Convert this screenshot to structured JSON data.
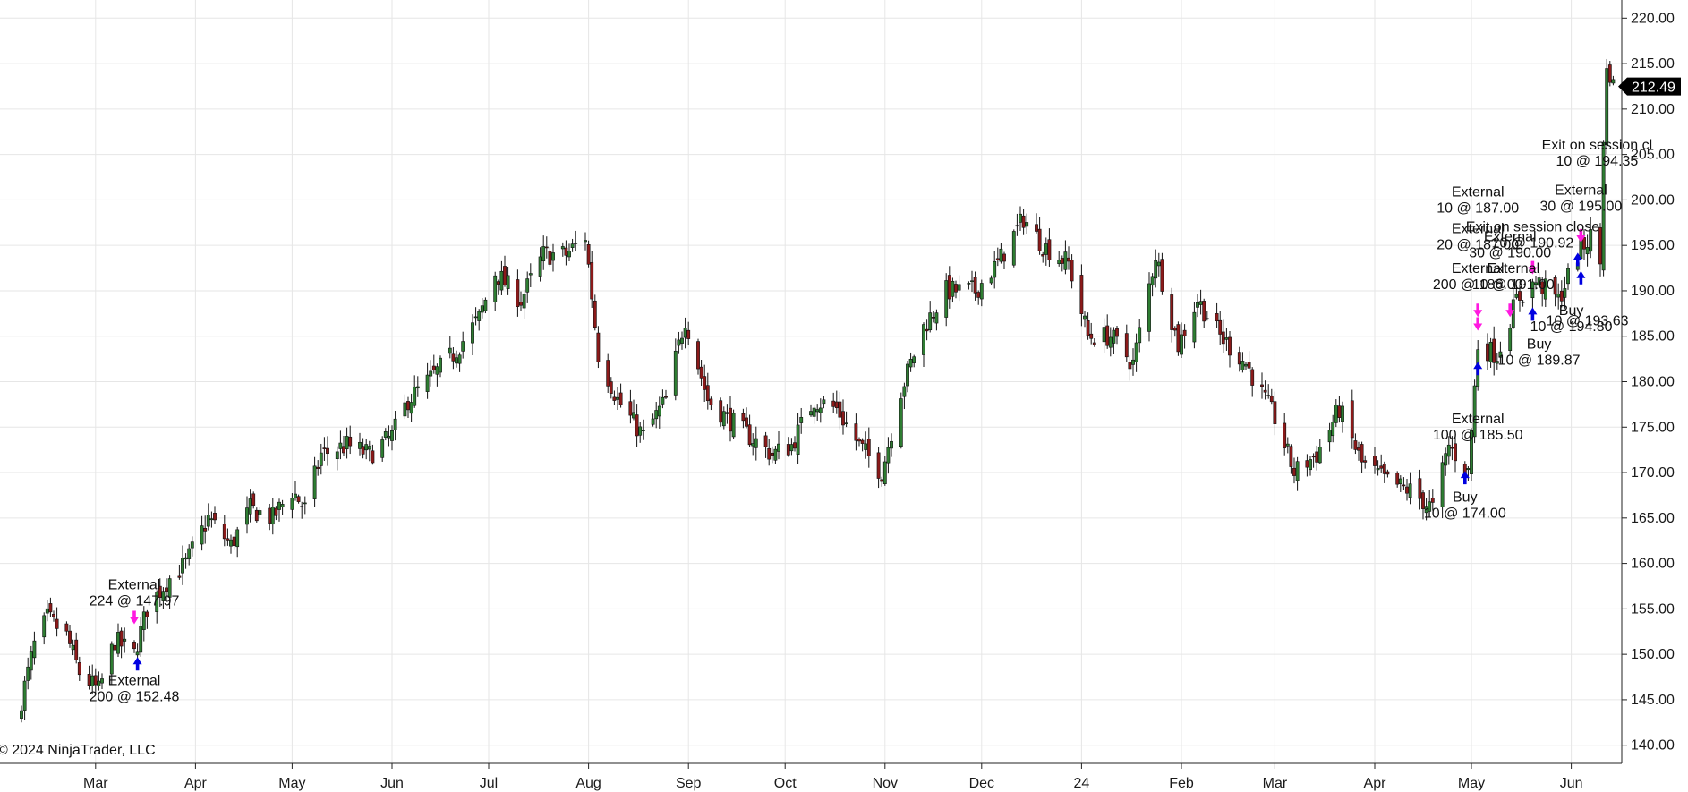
{
  "copyright": "© 2024 NinjaTrader, LLC",
  "colors": {
    "background": "#ffffff",
    "grid": "#e6e6e6",
    "up_candle": "#2e7d32",
    "down_candle": "#8b1a1a",
    "wick": "#111111",
    "buy_arrow": "#0000e0",
    "external_arrow": "#ff19e0",
    "price_tag": "#000000"
  },
  "chart_data": {
    "type": "candlestick",
    "title": "",
    "xlabel": "",
    "ylabel": "",
    "ylim": [
      138,
      222
    ],
    "y_ticks": [
      140,
      145,
      150,
      155,
      160,
      165,
      170,
      175,
      180,
      185,
      190,
      195,
      200,
      205,
      210,
      215,
      220
    ],
    "y_tick_labels": [
      "140.00",
      "145.00",
      "150.00",
      "155.00",
      "160.00",
      "165.00",
      "170.00",
      "175.00",
      "180.00",
      "185.00",
      "190.00",
      "195.00",
      "200.00",
      "205.00",
      "210.00",
      "215.00",
      "220.00"
    ],
    "grid": true,
    "x_range": [
      "2023-02-01",
      "2024-06-15"
    ],
    "x_ticks": [
      {
        "date": "2023-03-01",
        "label": "Mar"
      },
      {
        "date": "2023-04-01",
        "label": "Apr"
      },
      {
        "date": "2023-05-01",
        "label": "May"
      },
      {
        "date": "2023-06-01",
        "label": "Jun"
      },
      {
        "date": "2023-07-01",
        "label": "Jul"
      },
      {
        "date": "2023-08-01",
        "label": "Aug"
      },
      {
        "date": "2023-09-01",
        "label": "Sep"
      },
      {
        "date": "2023-10-01",
        "label": "Oct"
      },
      {
        "date": "2023-11-01",
        "label": "Nov"
      },
      {
        "date": "2023-12-01",
        "label": "Dec"
      },
      {
        "date": "2024-01-01",
        "label": "24"
      },
      {
        "date": "2024-02-01",
        "label": "Feb"
      },
      {
        "date": "2024-03-01",
        "label": "Mar"
      },
      {
        "date": "2024-04-01",
        "label": "Apr"
      },
      {
        "date": "2024-05-01",
        "label": "May"
      },
      {
        "date": "2024-06-01",
        "label": "Jun"
      }
    ],
    "last_price": "212.49",
    "last_price_value": 212.49,
    "close_path": [
      [
        "2023-02-06",
        145.0
      ],
      [
        "2023-02-10",
        151.0
      ],
      [
        "2023-02-14",
        154.0
      ],
      [
        "2023-02-20",
        152.0
      ],
      [
        "2023-02-24",
        148.0
      ],
      [
        "2023-03-02",
        146.0
      ],
      [
        "2023-03-07",
        151.5
      ],
      [
        "2023-03-13",
        150.0
      ],
      [
        "2023-03-17",
        155.0
      ],
      [
        "2023-03-23",
        158.0
      ],
      [
        "2023-03-29",
        160.0
      ],
      [
        "2023-04-05",
        165.0
      ],
      [
        "2023-04-12",
        162.0
      ],
      [
        "2023-04-18",
        166.0
      ],
      [
        "2023-04-25",
        165.0
      ],
      [
        "2023-05-01",
        168.0
      ],
      [
        "2023-05-05",
        166.0
      ],
      [
        "2023-05-10",
        172.0
      ],
      [
        "2023-05-18",
        173.0
      ],
      [
        "2023-05-25",
        172.0
      ],
      [
        "2023-06-01",
        174.0
      ],
      [
        "2023-06-06",
        178.0
      ],
      [
        "2023-06-12",
        180.0
      ],
      [
        "2023-06-20",
        183.0
      ],
      [
        "2023-06-28",
        187.0
      ],
      [
        "2023-07-03",
        192.0
      ],
      [
        "2023-07-11",
        189.0
      ],
      [
        "2023-07-18",
        194.0
      ],
      [
        "2023-07-25",
        194.0
      ],
      [
        "2023-07-31",
        196.0
      ],
      [
        "2023-08-04",
        183.0
      ],
      [
        "2023-08-10",
        178.0
      ],
      [
        "2023-08-18",
        174.0
      ],
      [
        "2023-08-25",
        178.0
      ],
      [
        "2023-08-31",
        187.0
      ],
      [
        "2023-09-07",
        178.0
      ],
      [
        "2023-09-13",
        176.0
      ],
      [
        "2023-09-20",
        174.0
      ],
      [
        "2023-09-27",
        172.0
      ],
      [
        "2023-10-03",
        173.0
      ],
      [
        "2023-10-10",
        178.0
      ],
      [
        "2023-10-17",
        177.0
      ],
      [
        "2023-10-24",
        173.0
      ],
      [
        "2023-10-31",
        170.0
      ],
      [
        "2023-11-06",
        179.0
      ],
      [
        "2023-11-13",
        186.0
      ],
      [
        "2023-11-20",
        190.0
      ],
      [
        "2023-11-29",
        190.0
      ],
      [
        "2023-12-06",
        193.0
      ],
      [
        "2023-12-14",
        198.0
      ],
      [
        "2023-12-20",
        195.0
      ],
      [
        "2023-12-28",
        193.0
      ],
      [
        "2024-01-03",
        185.0
      ],
      [
        "2024-01-10",
        185.0
      ],
      [
        "2024-01-17",
        182.0
      ],
      [
        "2024-01-24",
        194.0
      ],
      [
        "2024-01-31",
        184.0
      ],
      [
        "2024-02-06",
        189.0
      ],
      [
        "2024-02-13",
        185.0
      ],
      [
        "2024-02-21",
        182.0
      ],
      [
        "2024-03-01",
        176.0
      ],
      [
        "2024-03-07",
        170.0
      ],
      [
        "2024-03-14",
        172.0
      ],
      [
        "2024-03-21",
        177.0
      ],
      [
        "2024-03-28",
        171.0
      ],
      [
        "2024-04-05",
        169.0
      ],
      [
        "2024-04-12",
        168.0
      ],
      [
        "2024-04-19",
        166.0
      ],
      [
        "2024-04-24",
        173.0
      ],
      [
        "2024-04-30",
        170.0
      ],
      [
        "2024-05-03",
        184.0
      ],
      [
        "2024-05-09",
        183.0
      ],
      [
        "2024-05-15",
        189.0
      ],
      [
        "2024-05-21",
        191.0
      ],
      [
        "2024-05-28",
        189.0
      ],
      [
        "2024-06-03",
        194.0
      ],
      [
        "2024-06-07",
        196.0
      ],
      [
        "2024-06-10",
        193.0
      ],
      [
        "2024-06-11",
        207.0
      ],
      [
        "2024-06-12",
        214.0
      ],
      [
        "2024-06-13",
        214.0
      ],
      [
        "2024-06-14",
        212.49
      ]
    ],
    "annotations": [
      {
        "lines": [
          "External",
          "224 @ 147.97"
        ],
        "x": "2023-03-13",
        "y": 155.0,
        "anchor": "above"
      },
      {
        "lines": [
          "External",
          "200 @ 152.48"
        ],
        "x": "2023-03-13",
        "y": 148.0,
        "anchor": "below"
      },
      {
        "lines": [
          "External",
          "10 @ 187.00"
        ],
        "x": "2024-05-03",
        "y": 198.2,
        "anchor": "above"
      },
      {
        "lines": [
          "External",
          "20 @ 187.00"
        ],
        "x": "2024-05-03",
        "y": 194.2,
        "anchor": "above"
      },
      {
        "lines": [
          "External",
          "200 @ 186.00"
        ],
        "x": "2024-05-03",
        "y": 189.8,
        "anchor": "above"
      },
      {
        "lines": [
          "External",
          "100 @ 185.50"
        ],
        "x": "2024-05-03",
        "y": 176.8,
        "anchor": "below"
      },
      {
        "lines": [
          "Buy",
          "10 @ 174.00"
        ],
        "x": "2024-04-29",
        "y": 168.2,
        "anchor": "below"
      },
      {
        "lines": [
          "External",
          "30 @ 190.00"
        ],
        "x": "2024-05-13",
        "y": 193.3,
        "anchor": "above"
      },
      {
        "lines": [
          "External",
          "10 @ 191.00"
        ],
        "x": "2024-05-14",
        "y": 189.8,
        "anchor": "above"
      },
      {
        "lines": [
          "Exit on session close",
          "10 @ 190.92"
        ],
        "x": "2024-05-20",
        "y": 194.4,
        "anchor": "above"
      },
      {
        "lines": [
          "Buy",
          "10 @ 189.87"
        ],
        "x": "2024-05-22",
        "y": 185.0,
        "anchor": "below"
      },
      {
        "lines": [
          "Exit on session cl",
          "10 @ 194.35"
        ],
        "x": "2024-06-09",
        "y": 203.4,
        "anchor": "above"
      },
      {
        "lines": [
          "External",
          "30 @ 195.00"
        ],
        "x": "2024-06-04",
        "y": 198.4,
        "anchor": "above"
      },
      {
        "lines": [
          "Buy",
          "10 @ 194.80"
        ],
        "x": "2024-06-01",
        "y": 188.7,
        "anchor": "below"
      },
      {
        "lines": [
          "10 @ 193.63"
        ],
        "x": "2024-06-06",
        "y": 187.6,
        "anchor": "below"
      }
    ],
    "markers": [
      {
        "type": "buy",
        "x": "2023-03-14",
        "y": 149.0,
        "direction": "up"
      },
      {
        "type": "external",
        "x": "2023-03-13",
        "y": 154.0,
        "direction": "down"
      },
      {
        "type": "buy",
        "x": "2024-04-29",
        "y": 169.5,
        "direction": "up"
      },
      {
        "type": "buy",
        "x": "2024-05-03",
        "y": 181.5,
        "direction": "up"
      },
      {
        "type": "external",
        "x": "2024-05-03",
        "y": 187.8,
        "direction": "down"
      },
      {
        "type": "external",
        "x": "2024-05-03",
        "y": 186.3,
        "direction": "down"
      },
      {
        "type": "external",
        "x": "2024-05-13",
        "y": 187.8,
        "direction": "down"
      },
      {
        "type": "buy",
        "x": "2024-05-20",
        "y": 187.5,
        "direction": "up"
      },
      {
        "type": "external",
        "x": "2024-05-20",
        "y": 192.5,
        "direction": "down"
      },
      {
        "type": "buy",
        "x": "2024-06-04",
        "y": 191.5,
        "direction": "up"
      },
      {
        "type": "buy",
        "x": "2024-06-03",
        "y": 193.5,
        "direction": "up"
      },
      {
        "type": "external",
        "x": "2024-06-04",
        "y": 196.0,
        "direction": "down"
      }
    ]
  }
}
